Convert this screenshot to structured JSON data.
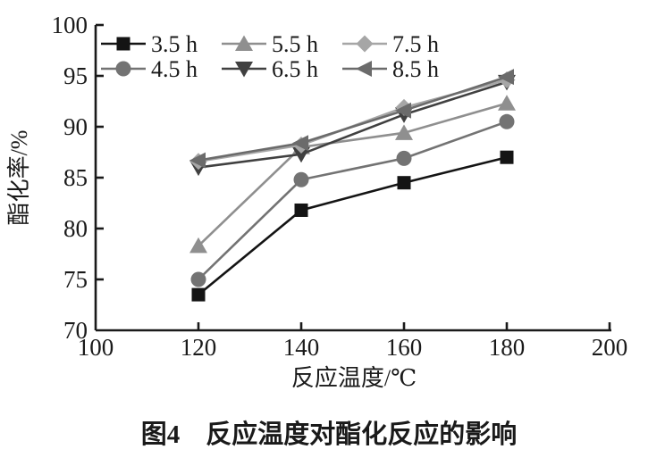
{
  "figure": {
    "caption": "图4　反应温度对酯化反应的影响"
  },
  "chart_data": {
    "type": "line",
    "title": "",
    "xlabel": "反应温度/℃",
    "ylabel": "酯化率/%",
    "x": [
      120,
      140,
      160,
      180
    ],
    "xlim": [
      100,
      200
    ],
    "ylim": [
      70,
      100
    ],
    "xticks": [
      100,
      120,
      140,
      160,
      180,
      200
    ],
    "yticks": [
      70,
      75,
      80,
      85,
      90,
      95,
      100
    ],
    "grid": false,
    "legend_position": "top-left-inside",
    "axis_color": "#1a1a1a",
    "series": [
      {
        "name": "3.5 h",
        "marker": "square",
        "color": "#141414",
        "values": [
          73.5,
          81.8,
          84.5,
          87.0
        ]
      },
      {
        "name": "4.5 h",
        "marker": "circle",
        "color": "#737373",
        "values": [
          75.0,
          84.8,
          86.9,
          90.5
        ]
      },
      {
        "name": "5.5 h",
        "marker": "triangle-up",
        "color": "#8f8f8f",
        "values": [
          78.3,
          88.0,
          89.4,
          92.3
        ]
      },
      {
        "name": "6.5 h",
        "marker": "triangle-down",
        "color": "#404040",
        "values": [
          86.0,
          87.3,
          91.2,
          94.4
        ]
      },
      {
        "name": "7.5 h",
        "marker": "diamond",
        "color": "#a6a6a6",
        "values": [
          86.6,
          88.2,
          91.9,
          94.6
        ]
      },
      {
        "name": "8.5 h",
        "marker": "triangle-left",
        "color": "#6b6b6b",
        "values": [
          86.7,
          88.4,
          91.6,
          94.9
        ]
      }
    ]
  }
}
